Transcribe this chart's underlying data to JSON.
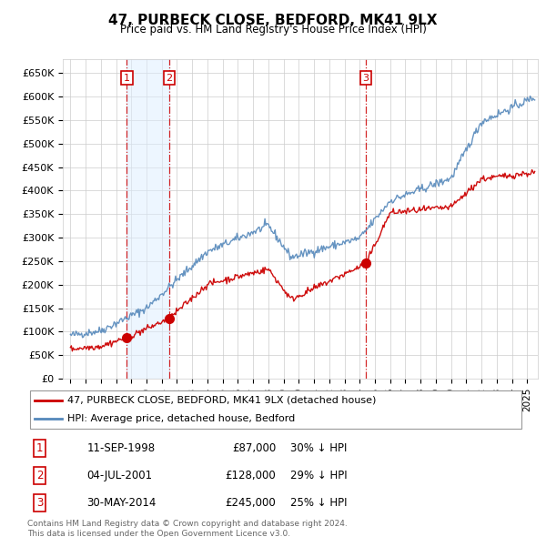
{
  "title": "47, PURBECK CLOSE, BEDFORD, MK41 9LX",
  "subtitle": "Price paid vs. HM Land Registry's House Price Index (HPI)",
  "ylabel_ticks": [
    "£0",
    "£50K",
    "£100K",
    "£150K",
    "£200K",
    "£250K",
    "£300K",
    "£350K",
    "£400K",
    "£450K",
    "£500K",
    "£550K",
    "£600K",
    "£650K"
  ],
  "ylim": [
    0,
    680000
  ],
  "yticks": [
    0,
    50000,
    100000,
    150000,
    200000,
    250000,
    300000,
    350000,
    400000,
    450000,
    500000,
    550000,
    600000,
    650000
  ],
  "sales": [
    {
      "label": 1,
      "date": "11-SEP-1998",
      "price": 87000,
      "hpi_pct": "30% ↓ HPI",
      "x": 1998.7
    },
    {
      "label": 2,
      "date": "04-JUL-2001",
      "price": 128000,
      "hpi_pct": "29% ↓ HPI",
      "x": 2001.5
    },
    {
      "label": 3,
      "date": "30-MAY-2014",
      "price": 245000,
      "hpi_pct": "25% ↓ HPI",
      "x": 2014.4
    }
  ],
  "legend_line1": "47, PURBECK CLOSE, BEDFORD, MK41 9LX (detached house)",
  "legend_line2": "HPI: Average price, detached house, Bedford",
  "footnote": "Contains HM Land Registry data © Crown copyright and database right 2024.\nThis data is licensed under the Open Government Licence v3.0.",
  "line_color_red": "#cc0000",
  "line_color_blue": "#5588bb",
  "fill_color_blue": "#ddeeff",
  "background_color": "#ffffff",
  "grid_color": "#cccccc",
  "vline_color": "#cc0000",
  "xlim_left": 1994.5,
  "xlim_right": 2025.7
}
